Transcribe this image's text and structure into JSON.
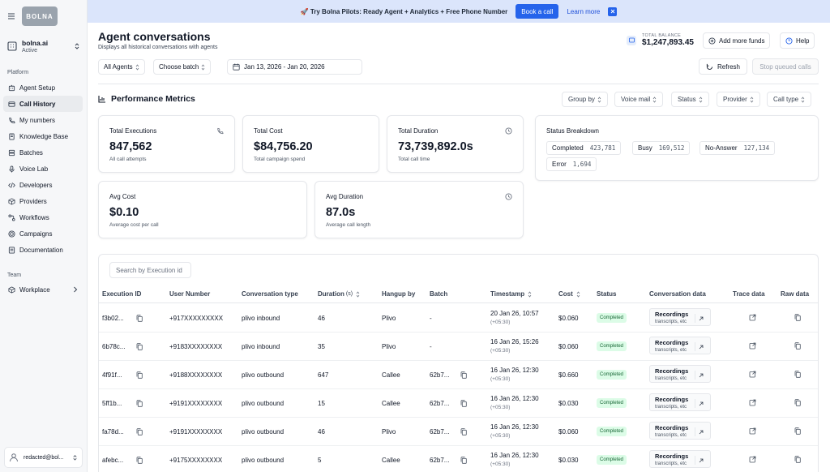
{
  "sidebar": {
    "logo_text": "BOLNA",
    "org_name": "bolna.ai",
    "org_status": "Active",
    "section_platform": "Platform",
    "section_team": "Team",
    "items": [
      {
        "label": "Agent Setup",
        "icon": "agent-icon"
      },
      {
        "label": "Call History",
        "icon": "call-history-icon",
        "active": true
      },
      {
        "label": "My numbers",
        "icon": "phone-icon"
      },
      {
        "label": "Knowledge Base",
        "icon": "book-icon"
      },
      {
        "label": "Batches",
        "icon": "layers-icon"
      },
      {
        "label": "Voice Lab",
        "icon": "mic-icon"
      },
      {
        "label": "Developers",
        "icon": "code-icon"
      },
      {
        "label": "Providers",
        "icon": "box-icon"
      },
      {
        "label": "Workflows",
        "icon": "workflow-icon"
      },
      {
        "label": "Campaigns",
        "icon": "target-icon"
      },
      {
        "label": "Documentation",
        "icon": "doc-icon"
      }
    ],
    "team_items": [
      {
        "label": "Workplace",
        "icon": "workplace-icon"
      }
    ],
    "user_email": "redacted@bol..."
  },
  "banner": {
    "text": "🚀 Try Bolna Pilots: Ready Agent + Analytics + Free Phone Number",
    "book_label": "Book a call",
    "learn_label": "Learn more"
  },
  "header": {
    "title": "Agent conversations",
    "subtitle": "Displays all historical conversations with agents",
    "balance_label": "TOTAL BALANCE",
    "balance_value": "$1,247,893.45",
    "add_funds_label": "Add more funds",
    "help_label": "Help"
  },
  "filters": {
    "agents": "All Agents",
    "batch": "Choose batch",
    "date_range": "Jan 13, 2026 - Jan 20, 2026",
    "refresh_label": "Refresh",
    "stop_label": "Stop queued calls"
  },
  "performance": {
    "title": "Performance Metrics",
    "group_by": "Group by",
    "voice_mail": "Voice mail",
    "status": "Status",
    "provider": "Provider",
    "call_type": "Call type",
    "cards": {
      "executions": {
        "label": "Total Executions",
        "value": "847,562",
        "sub": "All call attempts"
      },
      "cost": {
        "label": "Total Cost",
        "value": "$84,756.20",
        "sub": "Total campaign spend"
      },
      "duration": {
        "label": "Total Duration",
        "value": "73,739,892.0s",
        "sub": "Total call time"
      },
      "avg_cost": {
        "label": "Avg Cost",
        "value": "$0.10",
        "sub": "Average cost per call"
      },
      "avg_duration": {
        "label": "Avg Duration",
        "value": "87.0s",
        "sub": "Average call length"
      }
    },
    "status_breakdown": {
      "title": "Status Breakdown",
      "completed_label": "Completed",
      "completed_value": "423,781",
      "busy_label": "Busy",
      "busy_value": "169,512",
      "no_answer_label": "No-Answer",
      "no_answer_value": "127,134",
      "error_label": "Error",
      "error_value": "1,694"
    }
  },
  "table": {
    "search_placeholder": "Search by Execution id",
    "headers": {
      "execution_id": "Execution ID",
      "user_number": "User Number",
      "conversation_type": "Conversation type",
      "duration": "Duration",
      "duration_unit": "(s)",
      "hangup_by": "Hangup by",
      "batch": "Batch",
      "timestamp": "Timestamp",
      "cost": "Cost",
      "status": "Status",
      "conversation_data": "Conversation data",
      "trace_data": "Trace data",
      "raw_data": "Raw data"
    },
    "recordings_label": "Recordings",
    "recordings_sub": "transcripts, etc",
    "rows": [
      {
        "id": "f3b02...",
        "user": "+917XXXXXXXXX",
        "type": "plivo inbound",
        "duration": "46",
        "hangup": "Plivo",
        "batch": "-",
        "ts": "20 Jan 26, 10:57",
        "tz": "(+05:30)",
        "cost": "$0.060",
        "status": "Completed"
      },
      {
        "id": "6b78c...",
        "user": "+9183XXXXXXXX",
        "type": "plivo inbound",
        "duration": "35",
        "hangup": "Plivo",
        "batch": "-",
        "ts": "16 Jan 26, 15:26",
        "tz": "(+05:30)",
        "cost": "$0.060",
        "status": "Completed"
      },
      {
        "id": "4f91f...",
        "user": "+9188XXXXXXXX",
        "type": "plivo outbound",
        "duration": "647",
        "hangup": "Callee",
        "batch": "62b7...",
        "ts": "16 Jan 26, 12:30",
        "tz": "(+05:30)",
        "cost": "$0.660",
        "status": "Completed"
      },
      {
        "id": "5ff1b...",
        "user": "+9191XXXXXXXX",
        "type": "plivo outbound",
        "duration": "15",
        "hangup": "Callee",
        "batch": "62b7...",
        "ts": "16 Jan 26, 12:30",
        "tz": "(+05:30)",
        "cost": "$0.030",
        "status": "Completed"
      },
      {
        "id": "fa78d...",
        "user": "+9191XXXXXXXX",
        "type": "plivo outbound",
        "duration": "46",
        "hangup": "Plivo",
        "batch": "62b7...",
        "ts": "16 Jan 26, 12:30",
        "tz": "(+05:30)",
        "cost": "$0.060",
        "status": "Completed"
      },
      {
        "id": "afebc...",
        "user": "+9175XXXXXXXX",
        "type": "plivo outbound",
        "duration": "5",
        "hangup": "Callee",
        "batch": "62b7...",
        "ts": "16 Jan 26, 12:30",
        "tz": "(+05:30)",
        "cost": "$0.030",
        "status": "Completed"
      }
    ]
  }
}
